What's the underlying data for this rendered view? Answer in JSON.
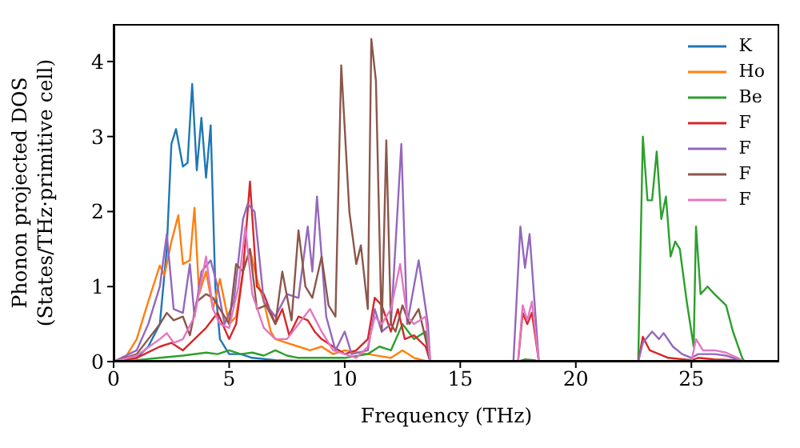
{
  "chart_data": {
    "type": "line",
    "xlabel": "Frequency (THz)",
    "ylabel": "Phonon projected DOS\n(States/THz·primitive cell)",
    "xlim": [
      0,
      28.8
    ],
    "xticks": [
      0,
      5,
      10,
      15,
      20,
      25
    ],
    "ylim": [
      0,
      4.5
    ],
    "yticks": [
      0,
      1,
      2,
      3,
      4
    ],
    "legend": "top right",
    "marker": "none",
    "line_style": "solid",
    "series": [
      {
        "name": "K",
        "color": "#1f77b4",
        "x": [
          0,
          1,
          1.5,
          2,
          2.3,
          2.5,
          2.7,
          3,
          3.2,
          3.4,
          3.6,
          3.8,
          4,
          4.2,
          4.4,
          4.6,
          5,
          5.5,
          6,
          7,
          8,
          10,
          13.5
        ],
        "values": [
          0,
          0.05,
          0.2,
          0.5,
          1.5,
          2.9,
          3.1,
          2.6,
          2.65,
          3.7,
          2.55,
          3.25,
          2.45,
          3.15,
          1,
          0.3,
          0.1,
          0.1,
          0.05,
          0.02,
          0.01,
          0.01,
          0
        ]
      },
      {
        "name": "Ho",
        "color": "#ff7f0e",
        "x": [
          0,
          0.5,
          1,
          1.5,
          2,
          2.2,
          2.5,
          2.8,
          3,
          3.3,
          3.5,
          3.7,
          4,
          4.3,
          4.6,
          5,
          5.3,
          5.6,
          5.9,
          6.2,
          6.5,
          6.8,
          7,
          7.5,
          8,
          8.5,
          9,
          9.5,
          10,
          11,
          12,
          12.5,
          13,
          13.6
        ],
        "values": [
          0,
          0.05,
          0.3,
          0.8,
          1.28,
          1.15,
          1.6,
          1.95,
          1.3,
          1.35,
          2.05,
          0.9,
          1.2,
          0.7,
          1.1,
          0.5,
          0.6,
          1.2,
          1.5,
          1.1,
          0.8,
          0.4,
          0.3,
          0.25,
          0.2,
          0.15,
          0.2,
          0.1,
          0.15,
          0.1,
          0.05,
          0.15,
          0.05,
          0
        ]
      },
      {
        "name": "Be",
        "color": "#2ca02c",
        "x": [
          0,
          1,
          2,
          3,
          4,
          4.5,
          5,
          5.5,
          6,
          6.5,
          7,
          7.5,
          8,
          9,
          10,
          11,
          11.5,
          12,
          12.5,
          13,
          13.5,
          13.7,
          17.5,
          17.8,
          18.2,
          18.4,
          22.7,
          22.9,
          23.1,
          23.3,
          23.5,
          23.7,
          23.9,
          24.1,
          24.3,
          24.5,
          24.8,
          25.1,
          25.2,
          25.4,
          25.7,
          26,
          26.5,
          26.8,
          27.2,
          27.3
        ],
        "values": [
          0,
          0.02,
          0.05,
          0.08,
          0.12,
          0.1,
          0.15,
          0.1,
          0.12,
          0.08,
          0.15,
          0.08,
          0.05,
          0.05,
          0.05,
          0.1,
          0.2,
          0.15,
          0.5,
          0.3,
          0.4,
          0,
          0,
          0.03,
          0.02,
          0,
          0,
          3,
          2.15,
          2.15,
          2.8,
          1.9,
          2.2,
          1.4,
          1.6,
          1.5,
          0.8,
          0.2,
          1.8,
          0.9,
          1,
          0.9,
          0.75,
          0.4,
          0.05,
          0
        ]
      },
      {
        "name": "F",
        "color": "#d62728",
        "x": [
          0,
          1,
          2,
          2.5,
          3,
          3.5,
          4,
          4.5,
          5,
          5.3,
          5.6,
          5.9,
          6.2,
          6.5,
          7,
          7.3,
          7.6,
          8,
          8.4,
          8.7,
          9,
          9.5,
          10,
          10.5,
          11,
          11.3,
          11.6,
          12,
          12.3,
          12.6,
          13,
          13.5,
          13.7,
          17.5,
          17.7,
          17.9,
          18.1,
          18.4,
          22.7,
          22.9,
          23.2,
          23.6,
          24,
          25,
          25.3,
          26,
          27,
          27.3
        ],
        "values": [
          0,
          0.05,
          0.2,
          0.25,
          0.15,
          0.3,
          0.45,
          0.65,
          0.3,
          0.5,
          1.2,
          2.4,
          1,
          0.9,
          0.5,
          0.7,
          0.35,
          0.6,
          0.55,
          0.4,
          0.3,
          0.2,
          0.1,
          0.15,
          0.3,
          0.85,
          0.75,
          0.4,
          0.7,
          0.3,
          0.35,
          0.2,
          0,
          0,
          0.65,
          0.5,
          0.65,
          0,
          0,
          0.33,
          0.15,
          0.1,
          0.05,
          0.02,
          0.05,
          0.03,
          0.02,
          0
        ]
      },
      {
        "name": "F",
        "color": "#9467bd",
        "x": [
          0,
          1,
          1.5,
          2,
          2.3,
          2.6,
          3,
          3.3,
          3.5,
          3.8,
          4.2,
          4.5,
          4.8,
          5.2,
          5.6,
          5.8,
          6.1,
          6.5,
          7,
          7.5,
          8,
          8.4,
          8.6,
          8.8,
          9.2,
          9.6,
          10,
          10.3,
          11,
          11.3,
          11.6,
          12,
          12.45,
          12.7,
          13.2,
          13.6,
          13.7,
          17.3,
          17.6,
          17.8,
          18,
          18.4,
          22.7,
          22.9,
          23.3,
          23.6,
          23.8,
          24.2,
          24.6,
          25,
          25.3,
          26,
          26.5,
          27,
          27.3
        ],
        "values": [
          0,
          0.15,
          0.5,
          1,
          1.7,
          0.7,
          0.65,
          1.3,
          0.6,
          1.2,
          1.35,
          1,
          0.5,
          0.8,
          1.9,
          2.1,
          2,
          0.8,
          0.6,
          0.9,
          0.85,
          1.8,
          1.2,
          2.2,
          0.6,
          0.15,
          0.4,
          0.1,
          0.15,
          0.7,
          0.4,
          0.5,
          2.9,
          0.5,
          1.35,
          0.5,
          0,
          0,
          1.8,
          1.25,
          1.7,
          0,
          0,
          0.25,
          0.4,
          0.3,
          0.38,
          0.2,
          0.1,
          0.05,
          0.1,
          0.1,
          0.08,
          0.03,
          0
        ]
      },
      {
        "name": "F",
        "color": "#8c564b",
        "x": [
          0,
          1,
          1.5,
          2,
          2.3,
          2.6,
          3,
          3.3,
          3.6,
          4,
          4.3,
          4.6,
          5,
          5.3,
          5.6,
          5.9,
          6.2,
          6.6,
          7,
          7.3,
          7.7,
          8,
          8.3,
          8.6,
          9,
          9.3,
          9.6,
          9.85,
          10.2,
          10.5,
          10.7,
          11,
          11.15,
          11.35,
          11.6,
          11.8,
          12,
          12.2,
          12.5,
          12.8,
          13.2,
          13.5,
          13.7
        ],
        "values": [
          0,
          0.1,
          0.3,
          0.5,
          0.65,
          0.55,
          0.6,
          0.35,
          0.8,
          0.9,
          0.85,
          0.7,
          0.5,
          1.3,
          1.2,
          1.5,
          0.7,
          0.75,
          0.5,
          1.2,
          0.55,
          1.75,
          1,
          0.85,
          1.4,
          0.75,
          0.6,
          3.95,
          2,
          1.3,
          1.55,
          0.7,
          4.3,
          3.75,
          0.4,
          2.95,
          0.5,
          0.4,
          0.75,
          0.5,
          0.7,
          0.3,
          0
        ]
      },
      {
        "name": "F",
        "color": "#e377c2",
        "x": [
          0,
          1,
          2,
          2.3,
          2.6,
          3,
          3.5,
          4,
          4.3,
          4.6,
          5,
          5.4,
          5.7,
          6,
          6.5,
          7,
          7.5,
          8,
          8.5,
          9,
          9.5,
          10,
          10.5,
          11,
          11.3,
          11.6,
          12,
          12.4,
          12.7,
          13,
          13.5,
          13.7,
          17.5,
          17.7,
          17.9,
          18.1,
          18.4,
          25,
          25.2,
          25.5,
          26,
          26.5,
          27,
          27.3
        ],
        "values": [
          0,
          0.08,
          0.3,
          0.38,
          0.25,
          0.3,
          0.6,
          1.4,
          0.7,
          0.5,
          0.45,
          1,
          1.8,
          0.9,
          0.45,
          0.3,
          0.3,
          0.5,
          0.7,
          0.4,
          0.15,
          0.1,
          0.05,
          0.2,
          0.6,
          0.5,
          0.7,
          1.3,
          0.6,
          0.5,
          0.6,
          0,
          0,
          0.75,
          0.55,
          0.8,
          0,
          0,
          0.3,
          0.15,
          0.15,
          0.12,
          0.05,
          0
        ]
      }
    ]
  }
}
